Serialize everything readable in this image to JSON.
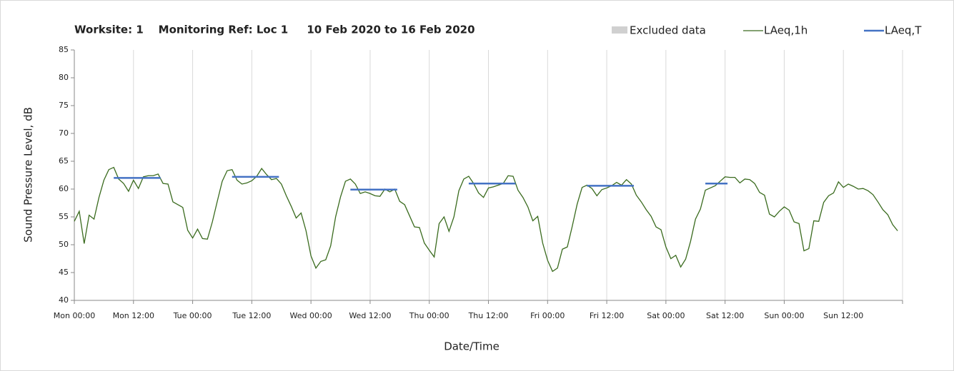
{
  "chart_data": {
    "type": "line",
    "title": "Worksite: 1    Monitoring Ref: Loc 1     10 Feb 2020 to 16 Feb 2020",
    "x_label": "Date/Time",
    "y_label": "Sound Pressure Level, dB",
    "xlim": [
      0,
      168
    ],
    "xticks": [
      {
        "value": 0,
        "label": "Mon 00:00"
      },
      {
        "value": 12,
        "label": "Mon 12:00"
      },
      {
        "value": 24,
        "label": "Tue 00:00"
      },
      {
        "value": 36,
        "label": "Tue 12:00"
      },
      {
        "value": 48,
        "label": "Wed 00:00"
      },
      {
        "value": 60,
        "label": "Wed 12:00"
      },
      {
        "value": 72,
        "label": "Thu 00:00"
      },
      {
        "value": 84,
        "label": "Thu 12:00"
      },
      {
        "value": 96,
        "label": "Fri 00:00"
      },
      {
        "value": 108,
        "label": "Fri 12:00"
      },
      {
        "value": 120,
        "label": "Sat 00:00"
      },
      {
        "value": 132,
        "label": "Sat 12:00"
      },
      {
        "value": 144,
        "label": "Sun 00:00"
      },
      {
        "value": 156,
        "label": "Sun 12:00"
      },
      {
        "value": 168,
        "label": ""
      }
    ],
    "ylim": [
      40,
      85
    ],
    "yticks": [
      40,
      45,
      50,
      55,
      60,
      65,
      70,
      75,
      80,
      85
    ],
    "grid": "x",
    "excluded": {
      "name": "Excluded data",
      "color": "#d0d0d0"
    },
    "series": [
      {
        "name": "LAeq,1h",
        "color": "#3a6b1e",
        "x": [
          0,
          1,
          2,
          3,
          4,
          5,
          6,
          7,
          8,
          9,
          10,
          11,
          12,
          13,
          14,
          15,
          16,
          17,
          18,
          19,
          20,
          21,
          22,
          23,
          24,
          25,
          26,
          27,
          28,
          29,
          30,
          31,
          32,
          33,
          34,
          35,
          36,
          37,
          38,
          39,
          40,
          41,
          42,
          43,
          44,
          45,
          46,
          47,
          48,
          49,
          50,
          51,
          52,
          53,
          54,
          55,
          56,
          57,
          58,
          59,
          60,
          61,
          62,
          63,
          64,
          65,
          66,
          67,
          68,
          69,
          70,
          71,
          72,
          73,
          74,
          75,
          76,
          77,
          78,
          79,
          80,
          81,
          82,
          83,
          84,
          85,
          86,
          87,
          88,
          89,
          90,
          91,
          92,
          93,
          94,
          95,
          96,
          97,
          98,
          99,
          100,
          101,
          102,
          103,
          104,
          105,
          106,
          107,
          108,
          109,
          110,
          111,
          112,
          113,
          114,
          115,
          116,
          117,
          118,
          119,
          120,
          121,
          122,
          123,
          124,
          125,
          126,
          127,
          128,
          129,
          130,
          131,
          132,
          133,
          134,
          135,
          136,
          137,
          138,
          139,
          140,
          141,
          142,
          143,
          144,
          145,
          146,
          147,
          148,
          149,
          150,
          151,
          152,
          153,
          154,
          155,
          156,
          157,
          158,
          159,
          160,
          161,
          162,
          163,
          164,
          165,
          166,
          167
        ],
        "values": [
          54.2,
          56.0,
          50.2,
          55.3,
          54.6,
          58.5,
          61.6,
          63.5,
          63.9,
          61.8,
          61.0,
          59.6,
          61.6,
          60.1,
          62.2,
          62.4,
          62.4,
          62.7,
          61.0,
          60.9,
          57.7,
          57.2,
          56.7,
          52.6,
          51.2,
          52.8,
          51.1,
          51.0,
          54.1,
          57.8,
          61.4,
          63.3,
          63.5,
          61.6,
          60.9,
          61.1,
          61.5,
          62.3,
          63.7,
          62.6,
          61.7,
          61.9,
          60.9,
          58.8,
          56.9,
          54.8,
          55.7,
          52.5,
          48.0,
          45.8,
          47.0,
          47.3,
          49.8,
          55.0,
          58.6,
          61.4,
          61.8,
          60.9,
          59.2,
          59.5,
          59.2,
          58.8,
          58.7,
          60.0,
          59.5,
          60.0,
          57.8,
          57.2,
          55.2,
          53.2,
          53.1,
          50.3,
          49.0,
          47.8,
          53.8,
          55.0,
          52.4,
          55.0,
          59.7,
          61.8,
          62.3,
          61.0,
          59.3,
          58.5,
          60.2,
          60.4,
          60.7,
          61.0,
          62.4,
          62.3,
          59.8,
          58.5,
          56.8,
          54.3,
          55.1,
          50.3,
          47.2,
          45.2,
          45.8,
          49.2,
          49.6,
          53.3,
          57.3,
          60.3,
          60.7,
          60.1,
          58.8,
          59.9,
          60.2,
          60.6,
          61.2,
          60.7,
          61.7,
          60.9,
          58.9,
          57.7,
          56.3,
          55.1,
          53.2,
          52.7,
          49.6,
          47.5,
          48.1,
          46.0,
          47.4,
          50.6,
          54.6,
          56.4,
          59.8,
          60.2,
          60.6,
          61.4,
          62.2,
          62.1,
          62.1,
          61.1,
          61.8,
          61.7,
          61.0,
          59.4,
          58.9,
          55.5,
          55.0,
          56.0,
          56.8,
          56.2,
          54.1,
          53.8,
          48.9,
          49.3,
          54.3,
          54.2,
          57.6,
          58.8,
          59.3,
          61.3,
          60.3,
          60.9,
          60.5,
          60.0,
          60.1,
          59.7,
          59.0,
          57.7,
          56.3,
          55.4,
          53.6,
          52.5
        ]
      },
      {
        "name": "LAeq,T",
        "color": "#4472c4",
        "segments": [
          {
            "x": [
              8,
              17.5
            ],
            "value": 62.0
          },
          {
            "x": [
              32,
              41.5
            ],
            "value": 62.2
          },
          {
            "x": [
              56,
              65.5
            ],
            "value": 59.9
          },
          {
            "x": [
              80,
              89.5
            ],
            "value": 61.0
          },
          {
            "x": [
              104,
              113.5
            ],
            "value": 60.6
          },
          {
            "x": [
              128,
              132.5
            ],
            "value": 61.0
          }
        ]
      }
    ]
  }
}
